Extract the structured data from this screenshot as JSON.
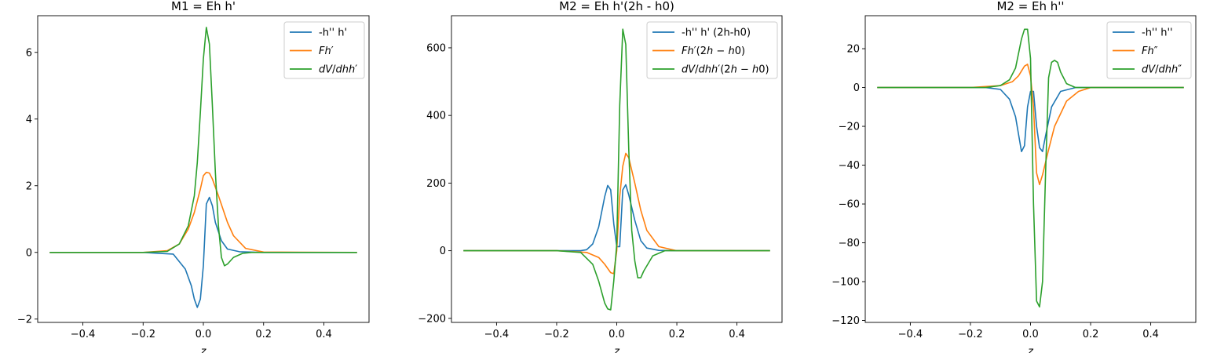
{
  "chart_data": [
    {
      "type": "line",
      "title": "M1 = Eh h'",
      "xlabel": "z",
      "ylabel": "",
      "xlim": [
        -0.55,
        0.55
      ],
      "ylim": [
        -2.1,
        7.1
      ],
      "xticks": [
        -0.4,
        -0.2,
        0.0,
        0.2,
        0.4
      ],
      "xtick_labels": [
        "−0.4",
        "−0.2",
        "0.0",
        "0.2",
        "0.4"
      ],
      "yticks": [
        -2,
        0,
        2,
        4,
        6
      ],
      "ytick_labels": [
        "−2",
        "0",
        "2",
        "4",
        "6"
      ],
      "grid": false,
      "legend_position": "upper right",
      "series": [
        {
          "name": "-h'' h'",
          "legend_html": "-h'' h'",
          "color": "#1f77b4",
          "x": [
            -0.51,
            -0.2,
            -0.1,
            -0.06,
            -0.04,
            -0.03,
            -0.02,
            -0.01,
            0.0,
            0.01,
            0.02,
            0.03,
            0.04,
            0.06,
            0.08,
            0.12,
            0.2,
            0.51
          ],
          "y": [
            0,
            0,
            -0.05,
            -0.5,
            -1.0,
            -1.4,
            -1.65,
            -1.4,
            -0.4,
            1.45,
            1.65,
            1.4,
            0.9,
            0.35,
            0.1,
            0.02,
            0,
            0
          ]
        },
        {
          "name": "Fh'",
          "legend_html": "<tspan font-style='italic'>Fh</tspan>′",
          "color": "#ff7f0e",
          "x": [
            -0.51,
            -0.2,
            -0.12,
            -0.08,
            -0.05,
            -0.03,
            -0.01,
            0.0,
            0.01,
            0.02,
            0.03,
            0.05,
            0.08,
            0.1,
            0.14,
            0.2,
            0.51
          ],
          "y": [
            0,
            0,
            0.05,
            0.25,
            0.7,
            1.2,
            1.9,
            2.3,
            2.4,
            2.38,
            2.2,
            1.7,
            0.9,
            0.5,
            0.12,
            0.01,
            0
          ]
        },
        {
          "name": "dV/dhh'",
          "legend_html": "<tspan font-style='italic'>dV</tspan>/<tspan font-style='italic'>dhh</tspan>′",
          "color": "#2ca02c",
          "x": [
            -0.51,
            -0.2,
            -0.12,
            -0.08,
            -0.05,
            -0.03,
            -0.02,
            -0.01,
            0.0,
            0.01,
            0.02,
            0.03,
            0.04,
            0.05,
            0.06,
            0.07,
            0.08,
            0.1,
            0.13,
            0.16,
            0.51
          ],
          "y": [
            0,
            0,
            0.03,
            0.25,
            0.8,
            1.7,
            2.7,
            4.2,
            5.8,
            6.75,
            6.25,
            4.4,
            2.4,
            0.8,
            -0.15,
            -0.4,
            -0.35,
            -0.15,
            -0.03,
            0,
            0
          ]
        }
      ]
    },
    {
      "type": "line",
      "title": "M2 = Eh h'(2h - h0)",
      "xlabel": "z",
      "ylabel": "",
      "xlim": [
        -0.55,
        0.55
      ],
      "ylim": [
        -212,
        695
      ],
      "xticks": [
        -0.4,
        -0.2,
        0.0,
        0.2,
        0.4
      ],
      "xtick_labels": [
        "−0.4",
        "−0.2",
        "0.0",
        "0.2",
        "0.4"
      ],
      "yticks": [
        -200,
        0,
        200,
        400,
        600
      ],
      "ytick_labels": [
        "−200",
        "0",
        "200",
        "400",
        "600"
      ],
      "grid": false,
      "legend_position": "upper right",
      "series": [
        {
          "name": "-h'' h' (2h-h0)",
          "legend_html": "-h'' h' (2h-h0)",
          "color": "#1f77b4",
          "x": [
            -0.51,
            -0.12,
            -0.1,
            -0.08,
            -0.06,
            -0.04,
            -0.03,
            -0.02,
            -0.01,
            0.0,
            0.01,
            0.02,
            0.03,
            0.04,
            0.06,
            0.08,
            0.1,
            0.14,
            0.2,
            0.51
          ],
          "y": [
            0,
            0,
            3,
            20,
            70,
            160,
            193,
            180,
            80,
            12,
            12,
            180,
            195,
            165,
            90,
            30,
            8,
            1,
            0,
            0
          ]
        },
        {
          "name": "Fh'(2h-h0)",
          "legend_html": "<tspan font-style='italic'>Fh</tspan>′(2<tspan font-style='italic'>h</tspan> − <tspan font-style='italic'>h</tspan>0)",
          "color": "#ff7f0e",
          "x": [
            -0.51,
            -0.2,
            -0.1,
            -0.06,
            -0.04,
            -0.02,
            -0.01,
            0.0,
            0.01,
            0.02,
            0.03,
            0.04,
            0.06,
            0.08,
            0.1,
            0.14,
            0.2,
            0.51
          ],
          "y": [
            0,
            0,
            -5,
            -20,
            -40,
            -65,
            -68,
            0,
            160,
            250,
            288,
            275,
            200,
            120,
            60,
            12,
            0,
            0
          ]
        },
        {
          "name": "dV/dhh'(2h-h0)",
          "legend_html": "<tspan font-style='italic'>dV</tspan>/<tspan font-style='italic'>dhh</tspan>′(2<tspan font-style='italic'>h</tspan> − <tspan font-style='italic'>h</tspan>0)",
          "color": "#2ca02c",
          "x": [
            -0.51,
            -0.2,
            -0.12,
            -0.08,
            -0.06,
            -0.04,
            -0.03,
            -0.02,
            -0.01,
            0.0,
            0.01,
            0.02,
            0.03,
            0.04,
            0.05,
            0.06,
            0.07,
            0.08,
            0.09,
            0.12,
            0.16,
            0.51
          ],
          "y": [
            0,
            0,
            -5,
            -40,
            -90,
            -155,
            -172,
            -175,
            -90,
            20,
            430,
            655,
            610,
            300,
            60,
            -30,
            -80,
            -80,
            -60,
            -15,
            0,
            0
          ]
        }
      ]
    },
    {
      "type": "line",
      "title": "M2 = Eh h''",
      "xlabel": "z",
      "ylabel": "",
      "xlim": [
        -0.55,
        0.55
      ],
      "ylim": [
        -121,
        37
      ],
      "xticks": [
        -0.4,
        -0.2,
        0.0,
        0.2,
        0.4
      ],
      "xtick_labels": [
        "−0.4",
        "−0.2",
        "0.0",
        "0.2",
        "0.4"
      ],
      "yticks": [
        -120,
        -100,
        -80,
        -60,
        -40,
        -20,
        0,
        20
      ],
      "ytick_labels": [
        "−120",
        "−100",
        "−80",
        "−60",
        "−40",
        "−20",
        "0",
        "20"
      ],
      "grid": false,
      "legend_position": "upper right",
      "series": [
        {
          "name": "-h'' h''",
          "legend_html": "-h'' h''",
          "color": "#1f77b4",
          "x": [
            -0.51,
            -0.15,
            -0.1,
            -0.07,
            -0.05,
            -0.03,
            -0.02,
            -0.01,
            0.0,
            0.01,
            0.02,
            0.03,
            0.04,
            0.05,
            0.07,
            0.1,
            0.15,
            0.51
          ],
          "y": [
            0,
            0,
            -1,
            -6,
            -15,
            -33,
            -30,
            -10,
            -2,
            -2,
            -20,
            -31,
            -33,
            -25,
            -10,
            -2,
            0,
            0
          ]
        },
        {
          "name": "Fh''",
          "legend_html": "<tspan font-style='italic'>Fh</tspan>″",
          "color": "#ff7f0e",
          "x": [
            -0.51,
            -0.2,
            -0.1,
            -0.06,
            -0.04,
            -0.02,
            -0.01,
            0.0,
            0.01,
            0.02,
            0.03,
            0.04,
            0.06,
            0.08,
            0.12,
            0.16,
            0.2,
            0.51
          ],
          "y": [
            0,
            0,
            1,
            3,
            6,
            11,
            12,
            6,
            -10,
            -44,
            -50,
            -45,
            -32,
            -20,
            -7,
            -2,
            0,
            0
          ]
        },
        {
          "name": "dV/dhh''",
          "legend_html": "<tspan font-style='italic'>dV</tspan>/<tspan font-style='italic'>dhh</tspan>″",
          "color": "#2ca02c",
          "x": [
            -0.51,
            -0.15,
            -0.1,
            -0.07,
            -0.05,
            -0.03,
            -0.02,
            -0.01,
            0.0,
            0.01,
            0.02,
            0.03,
            0.04,
            0.05,
            0.06,
            0.07,
            0.08,
            0.09,
            0.1,
            0.12,
            0.15,
            0.51
          ],
          "y": [
            0,
            0,
            1,
            4,
            10,
            25,
            30,
            30,
            15,
            -60,
            -110,
            -113,
            -100,
            -45,
            5,
            13,
            14,
            13,
            8,
            2,
            0,
            0
          ]
        }
      ]
    }
  ]
}
